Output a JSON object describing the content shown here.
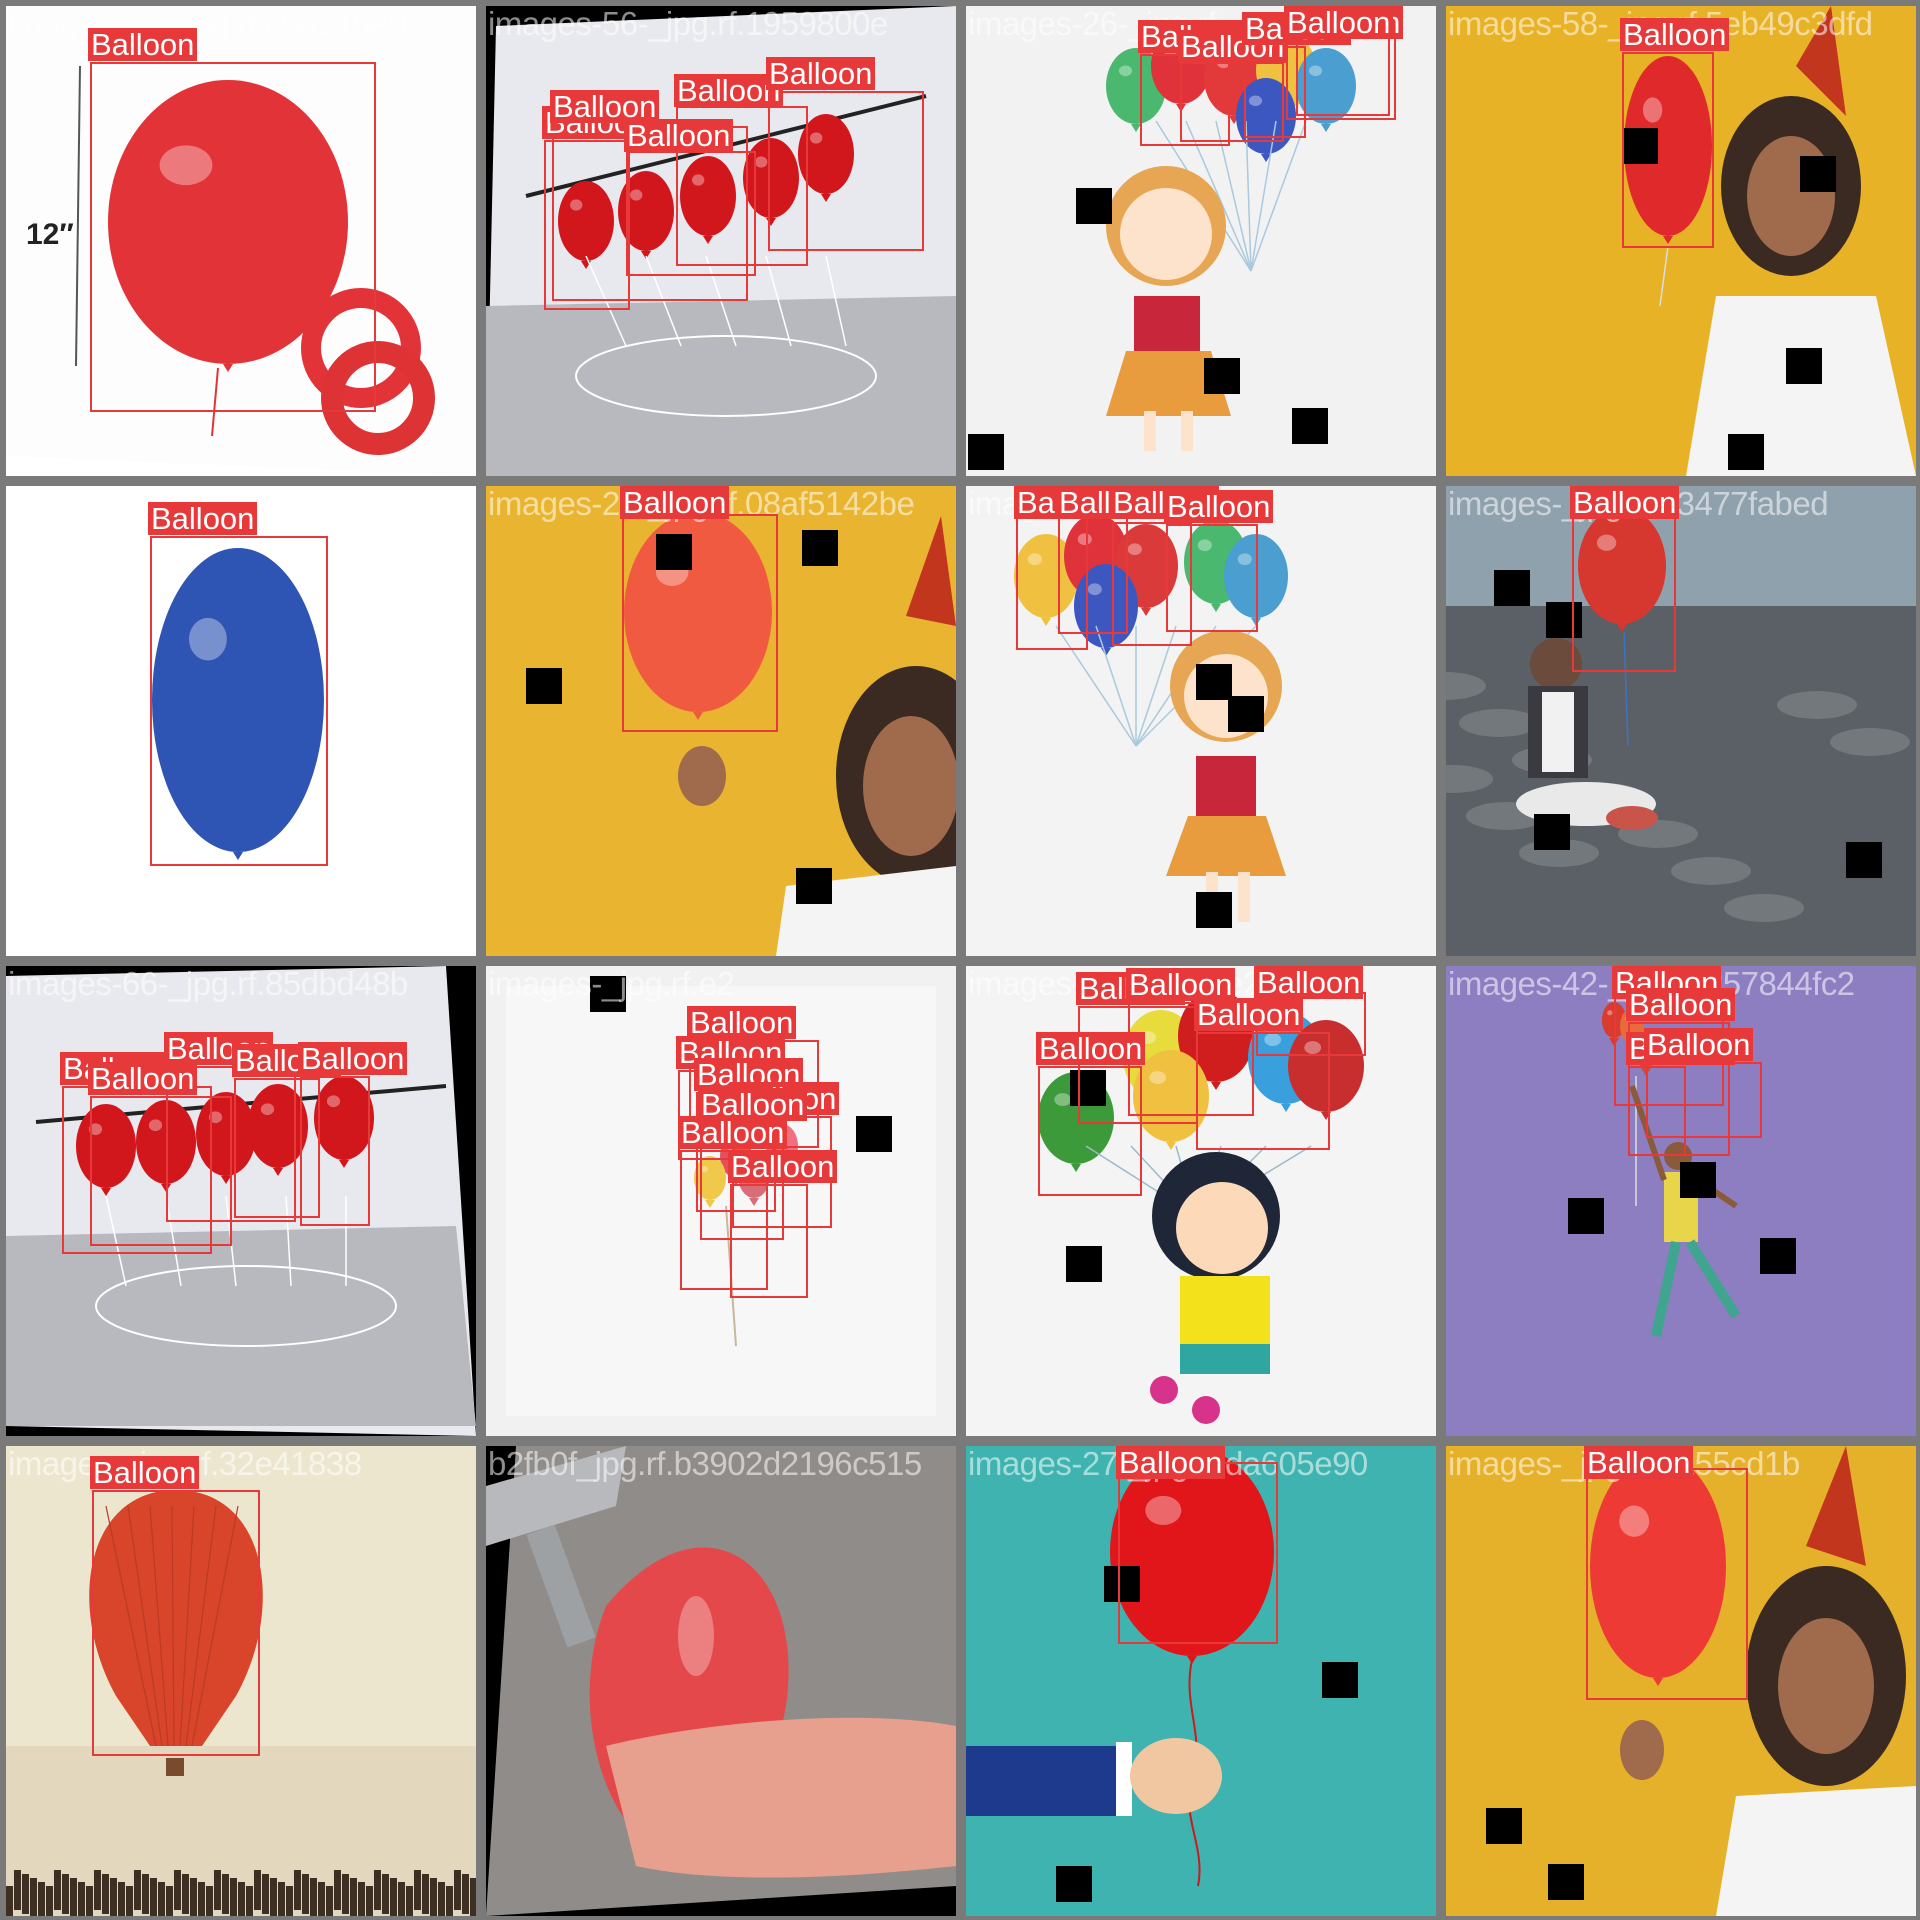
{
  "grid": {
    "rows": 4,
    "cols": 4,
    "tiles": [
      {
        "filename": "images-75-_jpg.rf.c5a215e0",
        "scene": "balloon-white-12inch",
        "boxes": [
          {
            "label": "Balloon"
          }
        ]
      },
      {
        "filename": "images-56-_jpg.rf.1959800e",
        "scene": "red-balloons-rack",
        "boxes": [
          {
            "label": "Balloon"
          },
          {
            "label": "Balloon"
          },
          {
            "label": "Balloon"
          },
          {
            "label": "Balloon"
          },
          {
            "label": "Balloon"
          }
        ]
      },
      {
        "filename": "images-26-_jpg.rf",
        "scene": "girl-balloons",
        "boxes": [
          {
            "label": "Balloon"
          },
          {
            "label": "Balloon"
          },
          {
            "label": "Balloon"
          },
          {
            "label": "Balloon"
          },
          {
            "label": "Balloon"
          }
        ]
      },
      {
        "filename": "images-58-_jpg.rf.5eb49c3dfd",
        "scene": "woman-yellow",
        "boxes": [
          {
            "label": "Balloon"
          }
        ]
      },
      {
        "filename": "images-_jpg.rf.fbc1bf4e69",
        "scene": "blue-balloon",
        "boxes": [
          {
            "label": "Balloon"
          }
        ]
      },
      {
        "filename": "images-20-_jpg.rf.08af5142be",
        "scene": "woman-yellow-zoom",
        "boxes": [
          {
            "label": "Balloon"
          }
        ]
      },
      {
        "filename": "images-22-_jpg.rf.02",
        "scene": "girl-balloons-2",
        "boxes": [
          {
            "label": "Balloon"
          },
          {
            "label": "Balloon"
          },
          {
            "label": "Balloon"
          },
          {
            "label": "Balloon"
          }
        ]
      },
      {
        "filename": "images-_jpg.rf.73477fabed",
        "scene": "boy-park",
        "boxes": [
          {
            "label": "Balloon"
          }
        ]
      },
      {
        "filename": "images-66-_jpg.rf.85dbd48b",
        "scene": "red-balloons-rack-2",
        "boxes": [
          {
            "label": "Balloon"
          },
          {
            "label": "Balloon"
          },
          {
            "label": "Balloon"
          },
          {
            "label": "Balloon"
          },
          {
            "label": "Balloon"
          }
        ]
      },
      {
        "filename": "images-_jpg.rf.e2",
        "scene": "small-balloons-white",
        "boxes": [
          {
            "label": "Balloon"
          },
          {
            "label": "Balloon"
          },
          {
            "label": "Balloon"
          },
          {
            "label": "Balloon"
          },
          {
            "label": "Balloon"
          },
          {
            "label": "Balloon"
          },
          {
            "label": "Balloon"
          }
        ]
      },
      {
        "filename": "images-28-_jpg.rf.e2cba3",
        "scene": "laughing-girl",
        "boxes": [
          {
            "label": "Balloon"
          },
          {
            "label": "Balloon"
          },
          {
            "label": "Balloon"
          },
          {
            "label": "Balloon"
          },
          {
            "label": "Balloon"
          }
        ]
      },
      {
        "filename": "images-42-_jpg.rf.257844fc2",
        "scene": "purple-jump",
        "boxes": [
          {
            "label": "Balloon"
          },
          {
            "label": "Balloon"
          },
          {
            "label": "Balloon"
          },
          {
            "label": "Balloon"
          }
        ]
      },
      {
        "filename": "images-_jpg.rf.32e41838",
        "scene": "hot-air-balloon",
        "boxes": [
          {
            "label": "Balloon"
          }
        ]
      },
      {
        "filename": "b2fb0f_jpg.rf.b3902d2196c515",
        "scene": "hand-balloon-tap",
        "boxes": []
      },
      {
        "filename": "images-27-_jpg.rf.da605e90",
        "scene": "teal-hand",
        "boxes": [
          {
            "label": "Balloon"
          }
        ]
      },
      {
        "filename": "images-_jpg.rf.4155cd1b",
        "scene": "woman-yellow-3",
        "boxes": [
          {
            "label": "Balloon"
          }
        ]
      }
    ]
  }
}
